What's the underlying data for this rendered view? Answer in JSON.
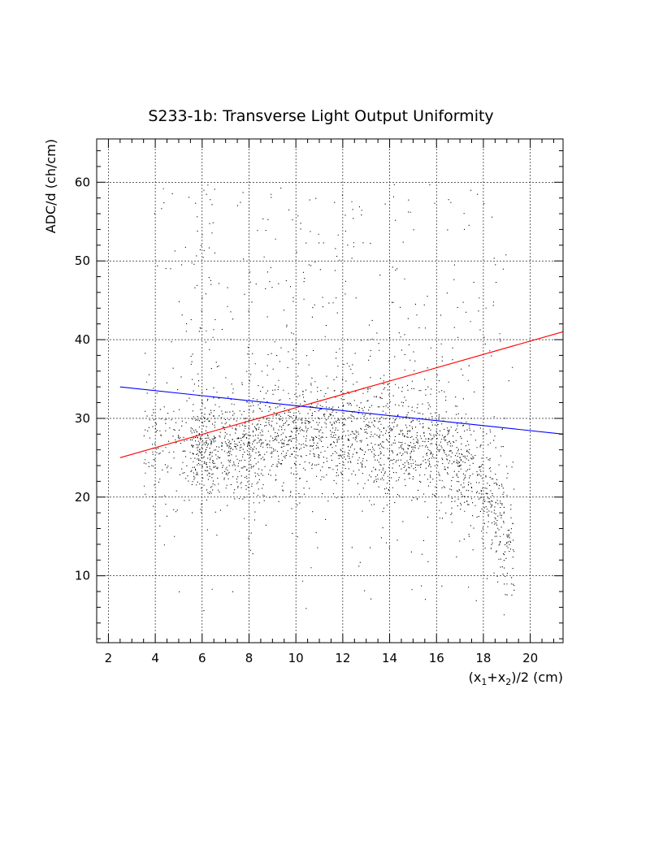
{
  "chart_data": {
    "type": "scatter",
    "title": "S233-1b: Transverse Light Output Uniformity",
    "xlabel": "(x1+x2)/2 (cm)",
    "ylabel": "ADC/d (ch/cm)",
    "xlim": [
      1.5,
      21.4
    ],
    "ylim": [
      1.5,
      65.5
    ],
    "x_ticks": [
      2,
      4,
      6,
      8,
      10,
      12,
      14,
      16,
      18,
      20
    ],
    "y_ticks": [
      10,
      20,
      30,
      40,
      50,
      60
    ],
    "grid": true,
    "legend": "none",
    "scatter_summary": {
      "x_range": [
        3.5,
        19.5
      ],
      "y_range": [
        5,
        60
      ],
      "dense_core": [
        {
          "x": 6,
          "y": 26
        },
        {
          "x": 8,
          "y": 27
        },
        {
          "x": 10,
          "y": 28
        },
        {
          "x": 12,
          "y": 28
        },
        {
          "x": 14,
          "y": 27
        },
        {
          "x": 16,
          "y": 26
        },
        {
          "x": 17.5,
          "y": 23
        },
        {
          "x": 18.5,
          "y": 18
        },
        {
          "x": 19,
          "y": 14
        }
      ],
      "point_color": "#000000"
    },
    "series": [
      {
        "color": "#ff0000",
        "x": [
          2.5,
          21.4
        ],
        "y": [
          25,
          41
        ]
      },
      {
        "color": "#0000ff",
        "x": [
          2.5,
          21.4
        ],
        "y": [
          34,
          28
        ]
      }
    ]
  }
}
